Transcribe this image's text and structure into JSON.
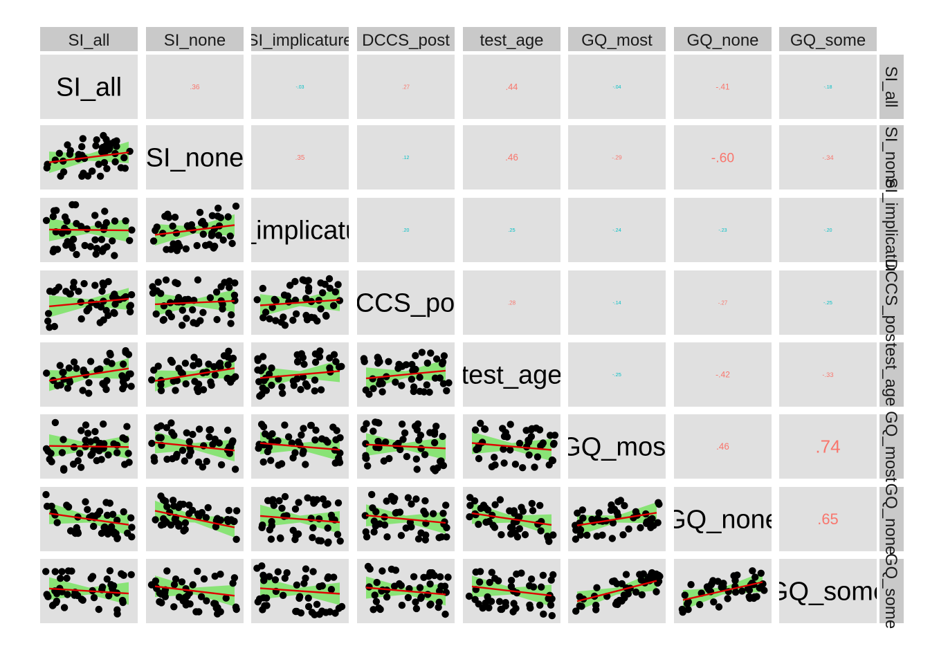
{
  "chart_data": {
    "type": "scatter",
    "subtype": "correlation-pairs-matrix",
    "variables": [
      "SI_all",
      "SI_none",
      "SI_implicature",
      "DCCS_post",
      "test_age",
      "GQ_most",
      "GQ_none",
      "GQ_some"
    ],
    "correlations": [
      {
        "row": "SI_all",
        "col": "SI_none",
        "r": ".36"
      },
      {
        "row": "SI_all",
        "col": "SI_implicature",
        "r": "-.03"
      },
      {
        "row": "SI_all",
        "col": "DCCS_post",
        "r": ".27"
      },
      {
        "row": "SI_all",
        "col": "test_age",
        "r": ".44"
      },
      {
        "row": "SI_all",
        "col": "GQ_most",
        "r": "-.04"
      },
      {
        "row": "SI_all",
        "col": "GQ_none",
        "r": "-.41"
      },
      {
        "row": "SI_all",
        "col": "GQ_some",
        "r": "-.18"
      },
      {
        "row": "SI_none",
        "col": "SI_implicature",
        "r": ".35"
      },
      {
        "row": "SI_none",
        "col": "DCCS_post",
        "r": ".12"
      },
      {
        "row": "SI_none",
        "col": "test_age",
        "r": ".46"
      },
      {
        "row": "SI_none",
        "col": "GQ_most",
        "r": "-.29"
      },
      {
        "row": "SI_none",
        "col": "GQ_none",
        "r": "-.60"
      },
      {
        "row": "SI_none",
        "col": "GQ_some",
        "r": "-.34"
      },
      {
        "row": "SI_implicature",
        "col": "DCCS_post",
        "r": ".20"
      },
      {
        "row": "SI_implicature",
        "col": "test_age",
        "r": ".25"
      },
      {
        "row": "SI_implicature",
        "col": "GQ_most",
        "r": "-.24"
      },
      {
        "row": "SI_implicature",
        "col": "GQ_none",
        "r": "-.23"
      },
      {
        "row": "SI_implicature",
        "col": "GQ_some",
        "r": "-.20"
      },
      {
        "row": "DCCS_post",
        "col": "test_age",
        "r": ".28"
      },
      {
        "row": "DCCS_post",
        "col": "GQ_most",
        "r": "-.14"
      },
      {
        "row": "DCCS_post",
        "col": "GQ_none",
        "r": "-.27"
      },
      {
        "row": "DCCS_post",
        "col": "GQ_some",
        "r": "-.25"
      },
      {
        "row": "test_age",
        "col": "GQ_most",
        "r": "-.25"
      },
      {
        "row": "test_age",
        "col": "GQ_none",
        "r": "-.42"
      },
      {
        "row": "test_age",
        "col": "GQ_some",
        "r": "-.33"
      },
      {
        "row": "GQ_most",
        "col": "GQ_none",
        "r": ".46"
      },
      {
        "row": "GQ_most",
        "col": "GQ_some",
        "r": ".74"
      },
      {
        "row": "GQ_none",
        "col": "GQ_some",
        "r": ".65"
      }
    ],
    "significance_colors": {
      "significant": "#f8766d",
      "not_significant": "#00bfc4"
    },
    "fit_line_color": "#e00000",
    "confidence_band_color": "#7fe36a",
    "point_color": "#000000",
    "panel_background": "#e0e0e0",
    "strip_background": "#c9c9c9",
    "grid": false,
    "legend": "none"
  }
}
